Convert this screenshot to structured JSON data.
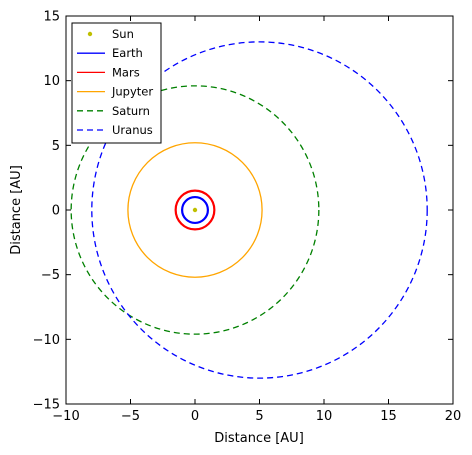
{
  "chart_data": {
    "type": "line",
    "xlabel": "Distance [AU]",
    "ylabel": "Distance [AU]",
    "xlim": [
      -10,
      20
    ],
    "ylim": [
      -15,
      15
    ],
    "xticks": [
      -10,
      -5,
      0,
      5,
      10,
      15,
      20
    ],
    "yticks": [
      -15,
      -10,
      -5,
      0,
      5,
      10,
      15
    ],
    "xtick_labels": [
      "−10",
      "−5",
      "0",
      "5",
      "10",
      "15",
      "20"
    ],
    "ytick_labels": [
      "−15",
      "−10",
      "−5",
      "0",
      "5",
      "10",
      "15"
    ],
    "grid": false,
    "legend_position": "upper-left",
    "series": [
      {
        "name": "Sun",
        "color": "#bfbf00",
        "style": "point",
        "center": [
          0,
          0
        ],
        "radius": 0
      },
      {
        "name": "Earth",
        "color": "#0000ff",
        "style": "solid",
        "center": [
          0,
          0
        ],
        "radius": 1.0
      },
      {
        "name": "Mars",
        "color": "#ff0000",
        "style": "solid",
        "center": [
          0,
          0
        ],
        "radius": 1.5
      },
      {
        "name": "Jupyter",
        "color": "#ffa500",
        "style": "solid",
        "center": [
          0,
          0
        ],
        "radius": 5.2
      },
      {
        "name": "Saturn",
        "color": "#008000",
        "style": "dashed",
        "center": [
          0,
          0
        ],
        "radius": 9.6
      },
      {
        "name": "Uranus",
        "color": "#0000ff",
        "style": "dashed",
        "center": [
          5.0,
          0
        ],
        "radius": 13.0
      }
    ]
  }
}
